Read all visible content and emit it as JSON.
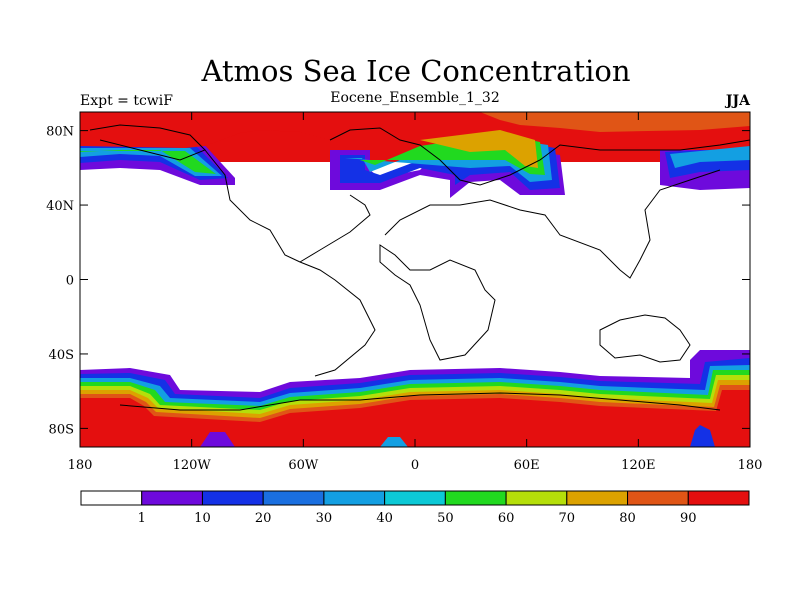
{
  "figure": {
    "title": "Atmos Sea Ice Concentration",
    "subtitle": "Eocene_Ensemble_1_32",
    "left_string": "Expt = tcwiF",
    "right_string": "JJA"
  },
  "map": {
    "projection": "cylindrical-equidistant",
    "lon_range": [
      -180,
      180
    ],
    "lat_range": [
      -90,
      90
    ],
    "lat_ticks": [
      {
        "value": 80,
        "label": "80N"
      },
      {
        "value": 40,
        "label": "40N"
      },
      {
        "value": 0,
        "label": "0"
      },
      {
        "value": -40,
        "label": "40S"
      },
      {
        "value": -80,
        "label": "80S"
      }
    ],
    "lon_ticks": [
      {
        "value": -180,
        "label": "180"
      },
      {
        "value": -120,
        "label": "120W"
      },
      {
        "value": -60,
        "label": "60W"
      },
      {
        "value": 0,
        "label": "0"
      },
      {
        "value": 60,
        "label": "60E"
      },
      {
        "value": 120,
        "label": "120E"
      },
      {
        "value": 180,
        "label": "180"
      }
    ]
  },
  "colorbar": {
    "colors": [
      "#ffffff",
      "#6e0adc",
      "#1431e6",
      "#1a6fe0",
      "#139fe2",
      "#0cc9d6",
      "#21d91f",
      "#b5df0a",
      "#dca200",
      "#e05516",
      "#e40f0f"
    ],
    "labels": [
      "1",
      "10",
      "20",
      "30",
      "40",
      "50",
      "60",
      "70",
      "80",
      "90"
    ]
  }
}
